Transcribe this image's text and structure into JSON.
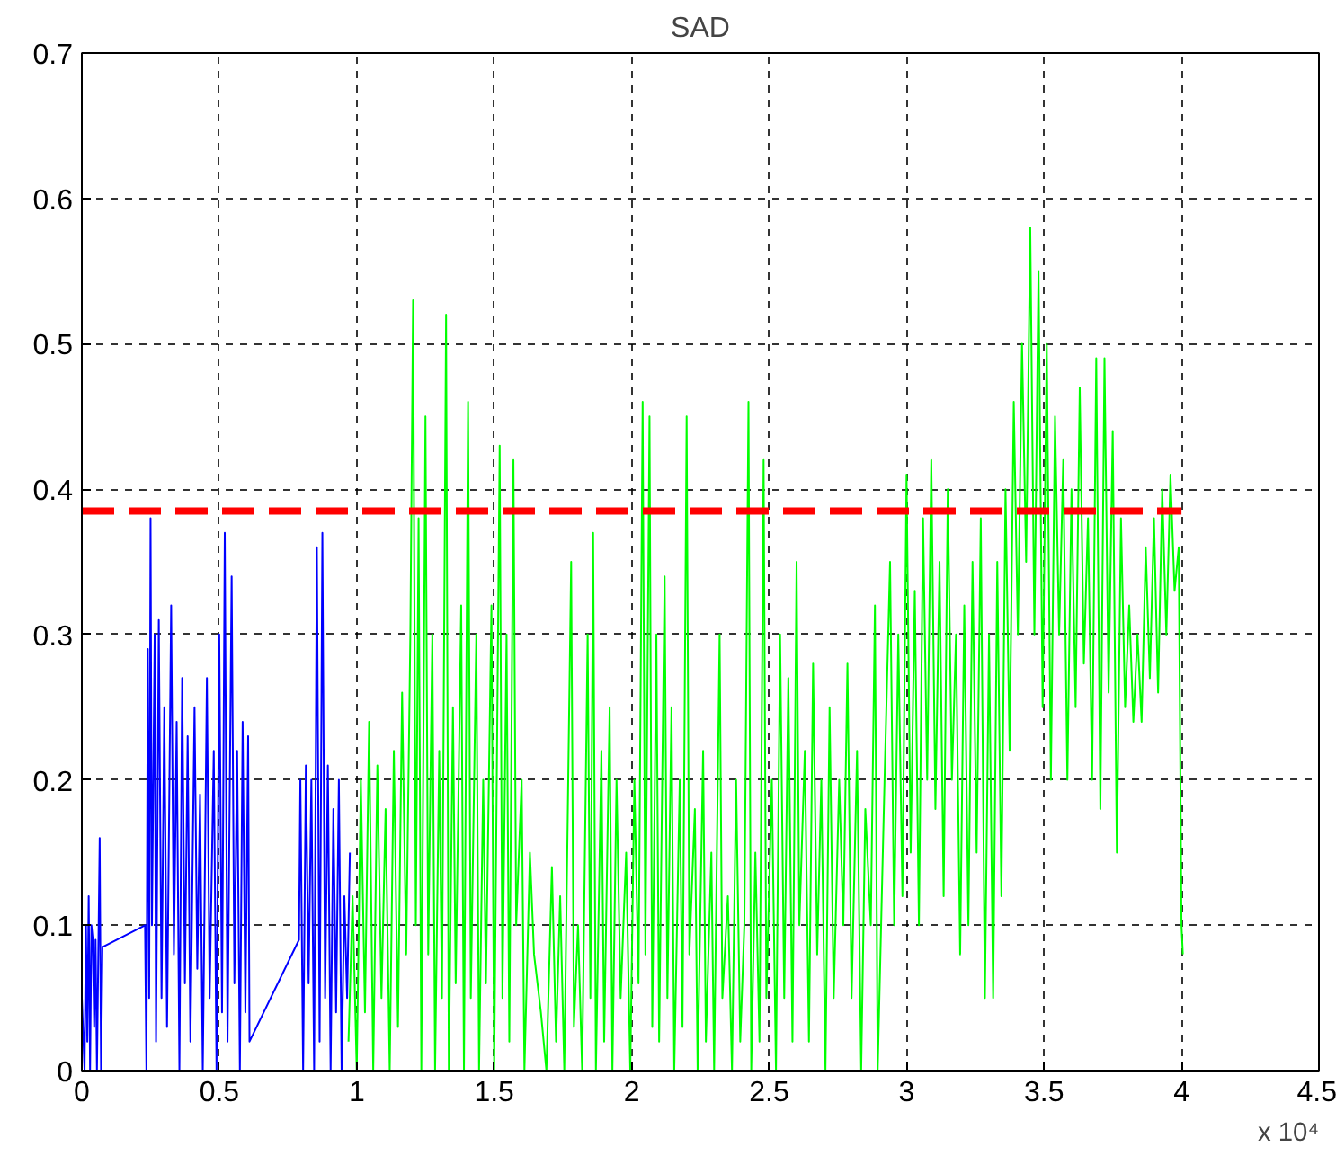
{
  "chart_data": {
    "type": "line",
    "title": "SAD",
    "xlim": [
      0,
      4.5
    ],
    "ylim": [
      0,
      0.7
    ],
    "xticks": [
      0,
      0.5,
      1,
      1.5,
      2,
      2.5,
      3,
      3.5,
      4,
      4.5
    ],
    "yticks": [
      0,
      0.1,
      0.2,
      0.3,
      0.4,
      0.5,
      0.6,
      0.7
    ],
    "grid": true,
    "line_style": "solid",
    "annotations": [
      "x 10⁴"
    ],
    "series": [
      {
        "color": "#0000ff",
        "x": [
          0,
          0.01,
          0.015,
          0.02,
          0.025,
          0.03,
          0.035,
          0.04,
          0.045,
          0.05,
          0.055,
          0.06,
          0.065,
          0.07,
          0.075,
          0.23,
          0.235,
          0.24,
          0.245,
          0.25,
          0.255,
          0.265,
          0.27,
          0.28,
          0.29,
          0.3,
          0.31,
          0.325,
          0.335,
          0.345,
          0.355,
          0.365,
          0.375,
          0.385,
          0.395,
          0.41,
          0.42,
          0.43,
          0.44,
          0.455,
          0.465,
          0.48,
          0.49,
          0.5,
          0.51,
          0.52,
          0.53,
          0.545,
          0.555,
          0.565,
          0.575,
          0.585,
          0.595,
          0.605,
          0.61,
          0.79,
          0.795,
          0.805,
          0.815,
          0.825,
          0.835,
          0.845,
          0.855,
          0.865,
          0.875,
          0.885,
          0.895,
          0.905,
          0.915,
          0.925,
          0.935,
          0.945,
          0.955,
          0.965,
          0.975
        ],
        "values": [
          0.05,
          0,
          0.1,
          0.02,
          0.12,
          0,
          0.1,
          0.09,
          0.03,
          0.09,
          0,
          0.08,
          0.16,
          0,
          0.085,
          0.1,
          0,
          0.29,
          0.05,
          0.38,
          0.1,
          0.3,
          0.02,
          0.31,
          0.05,
          0.25,
          0.03,
          0.32,
          0.08,
          0.24,
          0,
          0.27,
          0.06,
          0.23,
          0.02,
          0.25,
          0.07,
          0.19,
          0,
          0.27,
          0.05,
          0.22,
          0,
          0.3,
          0.04,
          0.37,
          0.02,
          0.34,
          0.06,
          0.22,
          0,
          0.24,
          0.04,
          0.23,
          0.02,
          0.09,
          0.2,
          0,
          0.21,
          0.06,
          0.2,
          0,
          0.36,
          0.02,
          0.37,
          0.05,
          0.21,
          0,
          0.18,
          0.04,
          0.2,
          0,
          0.12,
          0.05,
          0.15
        ]
      },
      {
        "color": "#00ff00",
        "x": [
          0.97,
          0.985,
          1.0,
          1.015,
          1.03,
          1.045,
          1.06,
          1.075,
          1.09,
          1.105,
          1.12,
          1.135,
          1.15,
          1.165,
          1.18,
          1.195,
          1.205,
          1.215,
          1.225,
          1.235,
          1.25,
          1.26,
          1.275,
          1.285,
          1.3,
          1.31,
          1.325,
          1.335,
          1.35,
          1.36,
          1.38,
          1.39,
          1.405,
          1.415,
          1.435,
          1.445,
          1.46,
          1.47,
          1.49,
          1.5,
          1.52,
          1.53,
          1.545,
          1.555,
          1.57,
          1.58,
          1.6,
          1.61,
          1.63,
          1.645,
          1.67,
          1.69,
          1.71,
          1.725,
          1.74,
          1.755,
          1.78,
          1.79,
          1.805,
          1.82,
          1.84,
          1.85,
          1.86,
          1.87,
          1.89,
          1.9,
          1.92,
          1.93,
          1.945,
          1.96,
          1.98,
          1.995,
          2.01,
          2.025,
          2.04,
          2.05,
          2.065,
          2.075,
          2.09,
          2.1,
          2.12,
          2.13,
          2.145,
          2.155,
          2.175,
          2.185,
          2.2,
          2.21,
          2.23,
          2.24,
          2.26,
          2.27,
          2.29,
          2.3,
          2.32,
          2.33,
          2.35,
          2.365,
          2.38,
          2.395,
          2.41,
          2.425,
          2.435,
          2.45,
          2.465,
          2.48,
          2.49,
          2.51,
          2.525,
          2.54,
          2.555,
          2.57,
          2.585,
          2.6,
          2.61,
          2.63,
          2.645,
          2.66,
          2.675,
          2.69,
          2.705,
          2.72,
          2.735,
          2.755,
          2.77,
          2.785,
          2.8,
          2.82,
          2.835,
          2.85,
          2.87,
          2.885,
          2.895,
          2.92,
          2.94,
          2.955,
          2.97,
          2.985,
          3.0,
          3.015,
          3.03,
          3.045,
          3.06,
          3.075,
          3.09,
          3.105,
          3.12,
          3.135,
          3.15,
          3.165,
          3.18,
          3.195,
          3.21,
          3.225,
          3.24,
          3.255,
          3.27,
          3.285,
          3.3,
          3.315,
          3.33,
          3.345,
          3.36,
          3.375,
          3.39,
          3.405,
          3.42,
          3.435,
          3.45,
          3.465,
          3.48,
          3.495,
          3.51,
          3.525,
          3.54,
          3.555,
          3.57,
          3.585,
          3.6,
          3.615,
          3.63,
          3.645,
          3.66,
          3.675,
          3.69,
          3.705,
          3.72,
          3.735,
          3.75,
          3.765,
          3.78,
          3.795,
          3.81,
          3.825,
          3.84,
          3.855,
          3.87,
          3.885,
          3.9,
          3.915,
          3.93,
          3.945,
          3.96,
          3.975,
          3.99,
          4.0,
          4.005
        ],
        "values": [
          0.02,
          0.12,
          0,
          0.2,
          0.04,
          0.24,
          0,
          0.21,
          0.05,
          0.18,
          0,
          0.22,
          0.03,
          0.26,
          0.08,
          0.3,
          0.53,
          0.1,
          0.38,
          0,
          0.45,
          0.08,
          0.3,
          0,
          0.22,
          0.05,
          0.52,
          0,
          0.25,
          0.06,
          0.32,
          0,
          0.46,
          0.05,
          0.3,
          0,
          0.2,
          0.06,
          0.32,
          0,
          0.43,
          0.05,
          0.3,
          0.02,
          0.42,
          0.1,
          0.2,
          0,
          0.15,
          0.08,
          0.04,
          0,
          0.14,
          0.02,
          0.12,
          0,
          0.35,
          0.03,
          0.1,
          0,
          0.3,
          0.05,
          0.37,
          0,
          0.22,
          0.02,
          0.25,
          0,
          0.2,
          0.05,
          0.15,
          0,
          0.2,
          0.06,
          0.46,
          0.08,
          0.45,
          0.03,
          0.3,
          0.02,
          0.34,
          0.05,
          0.25,
          0,
          0.2,
          0.03,
          0.45,
          0.08,
          0.18,
          0,
          0.22,
          0.02,
          0.15,
          0,
          0.3,
          0.05,
          0.12,
          0,
          0.2,
          0.02,
          0.1,
          0.46,
          0,
          0.15,
          0.02,
          0.42,
          0.05,
          0.2,
          0,
          0.3,
          0.05,
          0.27,
          0.02,
          0.35,
          0.1,
          0.22,
          0.02,
          0.28,
          0.08,
          0.2,
          0,
          0.25,
          0.05,
          0.2,
          0.1,
          0.28,
          0.05,
          0.22,
          0,
          0.18,
          0.1,
          0.32,
          0,
          0.2,
          0.35,
          0.1,
          0.3,
          0.12,
          0.41,
          0.15,
          0.33,
          0.1,
          0.38,
          0.2,
          0.42,
          0.18,
          0.35,
          0.12,
          0.4,
          0.2,
          0.3,
          0.08,
          0.32,
          0.1,
          0.35,
          0.15,
          0.38,
          0.05,
          0.3,
          0.05,
          0.35,
          0.12,
          0.4,
          0.22,
          0.46,
          0.3,
          0.5,
          0.35,
          0.58,
          0.3,
          0.55,
          0.25,
          0.5,
          0.2,
          0.45,
          0.3,
          0.42,
          0.2,
          0.4,
          0.25,
          0.47,
          0.28,
          0.38,
          0.2,
          0.49,
          0.18,
          0.49,
          0.26,
          0.44,
          0.15,
          0.38,
          0.25,
          0.32,
          0.24,
          0.3,
          0.24,
          0.36,
          0.27,
          0.38,
          0.26,
          0.4,
          0.3,
          0.41,
          0.33,
          0.36,
          0.1,
          0.08
        ]
      },
      {
        "color": "#ff0000",
        "line_style": "dashed",
        "x": [
          0,
          4
        ],
        "values": [
          0.385,
          0.385
        ]
      }
    ]
  }
}
